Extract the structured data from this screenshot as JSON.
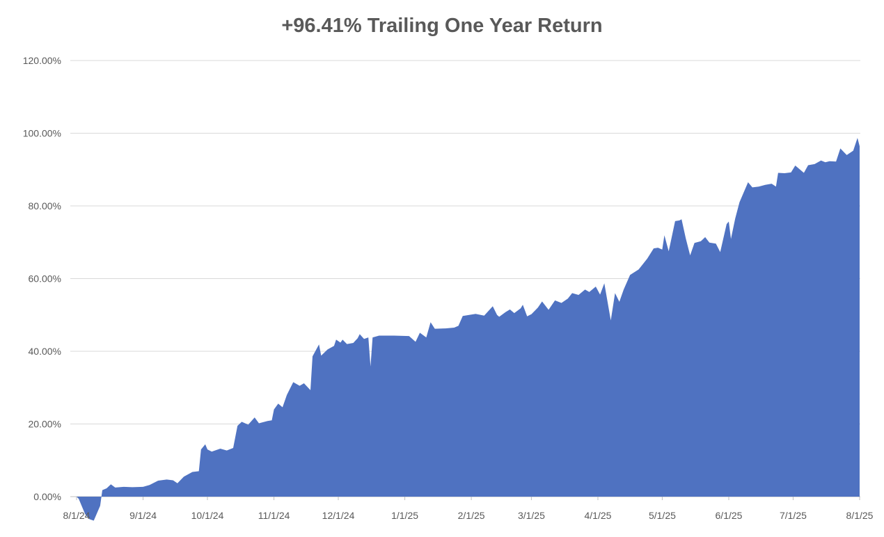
{
  "header": {
    "title": "+96.41% Trailing One Year Return"
  },
  "chart_data": {
    "type": "area",
    "title": "+96.41% Trailing One Year Return",
    "series_name": "Trailing One Year Return",
    "final_value_pct": 96.41,
    "xlabel": "",
    "ylabel": "",
    "ylim": [
      0,
      120
    ],
    "x_range": [
      "8/1/24",
      "8/1/25"
    ],
    "grid": "horizontal",
    "legend": "none",
    "title_color": "#595959",
    "label_color": "#595959",
    "fill_color": "#4F72C1",
    "gridline_color": "#D9D9D9",
    "axis_line_color": "#BFBFBF",
    "y_ticks": [
      {
        "label": "0.00%",
        "value": 0
      },
      {
        "label": "20.00%",
        "value": 20
      },
      {
        "label": "40.00%",
        "value": 40
      },
      {
        "label": "60.00%",
        "value": 60
      },
      {
        "label": "80.00%",
        "value": 80
      },
      {
        "label": "100.00%",
        "value": 100
      },
      {
        "label": "120.00%",
        "value": 120
      }
    ],
    "x_ticks": [
      {
        "label": "8/1/24",
        "date": "2024-08-01"
      },
      {
        "label": "9/1/24",
        "date": "2024-09-01"
      },
      {
        "label": "10/1/24",
        "date": "2024-10-01"
      },
      {
        "label": "11/1/24",
        "date": "2024-11-01"
      },
      {
        "label": "12/1/24",
        "date": "2024-12-01"
      },
      {
        "label": "1/1/25",
        "date": "2025-01-01"
      },
      {
        "label": "2/1/25",
        "date": "2025-02-01"
      },
      {
        "label": "3/1/25",
        "date": "2025-03-01"
      },
      {
        "label": "4/1/25",
        "date": "2025-04-01"
      },
      {
        "label": "5/1/25",
        "date": "2025-05-01"
      },
      {
        "label": "6/1/25",
        "date": "2025-06-01"
      },
      {
        "label": "7/1/25",
        "date": "2025-07-01"
      },
      {
        "label": "8/1/25",
        "date": "2025-08-01"
      }
    ],
    "points": [
      [
        "2024-08-01",
        0.0
      ],
      [
        "2024-08-02",
        -0.6
      ],
      [
        "2024-08-05",
        -4.8
      ],
      [
        "2024-08-07",
        -6.2
      ],
      [
        "2024-08-09",
        -6.6
      ],
      [
        "2024-08-12",
        -2.5
      ],
      [
        "2024-08-13",
        1.8
      ],
      [
        "2024-08-15",
        2.3
      ],
      [
        "2024-08-17",
        3.4
      ],
      [
        "2024-08-19",
        2.5
      ],
      [
        "2024-08-23",
        2.7
      ],
      [
        "2024-08-27",
        2.6
      ],
      [
        "2024-09-01",
        2.7
      ],
      [
        "2024-09-04",
        3.2
      ],
      [
        "2024-09-08",
        4.4
      ],
      [
        "2024-09-12",
        4.7
      ],
      [
        "2024-09-15",
        4.5
      ],
      [
        "2024-09-17",
        3.7
      ],
      [
        "2024-09-20",
        5.5
      ],
      [
        "2024-09-24",
        6.8
      ],
      [
        "2024-09-27",
        7.0
      ],
      [
        "2024-09-28",
        13.0
      ],
      [
        "2024-09-30",
        14.4
      ],
      [
        "2024-10-01",
        13.0
      ],
      [
        "2024-10-03",
        12.4
      ],
      [
        "2024-10-07",
        13.2
      ],
      [
        "2024-10-10",
        12.7
      ],
      [
        "2024-10-13",
        13.4
      ],
      [
        "2024-10-15",
        19.5
      ],
      [
        "2024-10-17",
        20.6
      ],
      [
        "2024-10-20",
        19.8
      ],
      [
        "2024-10-23",
        21.8
      ],
      [
        "2024-10-25",
        20.2
      ],
      [
        "2024-10-29",
        20.8
      ],
      [
        "2024-10-31",
        21.0
      ],
      [
        "2024-11-01",
        24.0
      ],
      [
        "2024-11-03",
        25.6
      ],
      [
        "2024-11-05",
        24.6
      ],
      [
        "2024-11-07",
        28.0
      ],
      [
        "2024-11-10",
        31.5
      ],
      [
        "2024-11-13",
        30.5
      ],
      [
        "2024-11-15",
        31.2
      ],
      [
        "2024-11-18",
        29.3
      ],
      [
        "2024-11-19",
        38.6
      ],
      [
        "2024-11-22",
        41.9
      ],
      [
        "2024-11-23",
        38.8
      ],
      [
        "2024-11-26",
        40.5
      ],
      [
        "2024-11-29",
        41.5
      ],
      [
        "2024-11-30",
        43.2
      ],
      [
        "2024-12-02",
        42.4
      ],
      [
        "2024-12-03",
        43.2
      ],
      [
        "2024-12-05",
        42.0
      ],
      [
        "2024-12-08",
        42.3
      ],
      [
        "2024-12-10",
        43.6
      ],
      [
        "2024-12-11",
        44.7
      ],
      [
        "2024-12-13",
        43.4
      ],
      [
        "2024-12-15",
        43.8
      ],
      [
        "2024-12-16",
        35.8
      ],
      [
        "2024-12-17",
        43.8
      ],
      [
        "2024-12-20",
        44.3
      ],
      [
        "2024-12-27",
        44.3
      ],
      [
        "2025-01-03",
        44.2
      ],
      [
        "2025-01-06",
        42.6
      ],
      [
        "2025-01-08",
        45.1
      ],
      [
        "2025-01-11",
        43.8
      ],
      [
        "2025-01-13",
        48.0
      ],
      [
        "2025-01-15",
        46.2
      ],
      [
        "2025-01-20",
        46.3
      ],
      [
        "2025-01-24",
        46.5
      ],
      [
        "2025-01-26",
        47.0
      ],
      [
        "2025-01-28",
        49.7
      ],
      [
        "2025-01-31",
        50.0
      ],
      [
        "2025-02-03",
        50.3
      ],
      [
        "2025-02-07",
        49.8
      ],
      [
        "2025-02-11",
        52.4
      ],
      [
        "2025-02-13",
        50.0
      ],
      [
        "2025-02-14",
        49.5
      ],
      [
        "2025-02-17",
        50.8
      ],
      [
        "2025-02-19",
        51.5
      ],
      [
        "2025-02-21",
        50.5
      ],
      [
        "2025-02-24",
        51.8
      ],
      [
        "2025-02-25",
        52.8
      ],
      [
        "2025-02-27",
        49.6
      ],
      [
        "2025-03-01",
        50.2
      ],
      [
        "2025-03-04",
        52.0
      ],
      [
        "2025-03-06",
        53.7
      ],
      [
        "2025-03-09",
        51.4
      ],
      [
        "2025-03-12",
        54.0
      ],
      [
        "2025-03-15",
        53.3
      ],
      [
        "2025-03-18",
        54.5
      ],
      [
        "2025-03-20",
        56.0
      ],
      [
        "2025-03-23",
        55.5
      ],
      [
        "2025-03-26",
        57.0
      ],
      [
        "2025-03-28",
        56.3
      ],
      [
        "2025-03-31",
        57.8
      ],
      [
        "2025-04-02",
        55.6
      ],
      [
        "2025-04-04",
        58.7
      ],
      [
        "2025-04-07",
        48.5
      ],
      [
        "2025-04-09",
        56.0
      ],
      [
        "2025-04-11",
        53.6
      ],
      [
        "2025-04-13",
        57.0
      ],
      [
        "2025-04-16",
        61.0
      ],
      [
        "2025-04-20",
        62.5
      ],
      [
        "2025-04-24",
        65.5
      ],
      [
        "2025-04-27",
        68.3
      ],
      [
        "2025-04-29",
        68.5
      ],
      [
        "2025-05-01",
        68.0
      ],
      [
        "2025-05-02",
        71.9
      ],
      [
        "2025-05-04",
        67.5
      ],
      [
        "2025-05-07",
        75.8
      ],
      [
        "2025-05-09",
        76.0
      ],
      [
        "2025-05-10",
        76.3
      ],
      [
        "2025-05-12",
        71.0
      ],
      [
        "2025-05-14",
        66.4
      ],
      [
        "2025-05-16",
        69.8
      ],
      [
        "2025-05-19",
        70.3
      ],
      [
        "2025-05-21",
        71.4
      ],
      [
        "2025-05-23",
        69.9
      ],
      [
        "2025-05-26",
        69.6
      ],
      [
        "2025-05-28",
        67.3
      ],
      [
        "2025-05-31",
        75.0
      ],
      [
        "2025-06-01",
        75.7
      ],
      [
        "2025-06-02",
        70.9
      ],
      [
        "2025-06-04",
        76.5
      ],
      [
        "2025-06-06",
        81.0
      ],
      [
        "2025-06-10",
        86.5
      ],
      [
        "2025-06-12",
        85.1
      ],
      [
        "2025-06-15",
        85.3
      ],
      [
        "2025-06-18",
        85.8
      ],
      [
        "2025-06-21",
        86.1
      ],
      [
        "2025-06-23",
        85.3
      ],
      [
        "2025-06-24",
        89.1
      ],
      [
        "2025-06-27",
        89.0
      ],
      [
        "2025-06-30",
        89.2
      ],
      [
        "2025-07-02",
        91.1
      ],
      [
        "2025-07-06",
        89.1
      ],
      [
        "2025-07-08",
        91.2
      ],
      [
        "2025-07-11",
        91.5
      ],
      [
        "2025-07-14",
        92.5
      ],
      [
        "2025-07-16",
        92.0
      ],
      [
        "2025-07-18",
        92.3
      ],
      [
        "2025-07-21",
        92.2
      ],
      [
        "2025-07-23",
        95.8
      ],
      [
        "2025-07-25",
        94.6
      ],
      [
        "2025-07-26",
        94.0
      ],
      [
        "2025-07-29",
        95.2
      ],
      [
        "2025-07-31",
        98.7
      ],
      [
        "2025-08-01",
        96.41
      ]
    ]
  }
}
